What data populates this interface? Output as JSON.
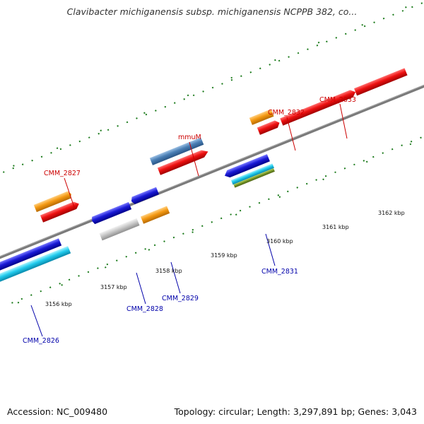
{
  "title": "Clavibacter michiganensis subsp. michiganensis NCPPB 382, co...",
  "footer": {
    "accession": "Accession: NC_009480",
    "summary": "Topology: circular; Length: 3,297,891 bp; Genes: 3,043"
  },
  "scale_labels": [
    "3156 kbp",
    "3157 kbp",
    "3158 kbp",
    "3159 kbp",
    "3160 kbp",
    "3161 kbp",
    "3162 kbp"
  ],
  "genes": [
    {
      "name": "CMM_2826",
      "strand": "reverse"
    },
    {
      "name": "CMM_2827",
      "strand": "forward"
    },
    {
      "name": "CMM_2828",
      "strand": "reverse"
    },
    {
      "name": "CMM_2829",
      "strand": "reverse"
    },
    {
      "name": "mmuM",
      "strand": "forward"
    },
    {
      "name": "CMM_2831",
      "strand": "reverse"
    },
    {
      "name": "CMM_2832",
      "strand": "forward"
    },
    {
      "name": "CMM_2833",
      "strand": "forward"
    }
  ],
  "colors": {
    "backbone": "#808080",
    "red": "#ee1111",
    "orange": "#f59a14",
    "blue": "#1a1ad6",
    "cyan": "#22ccee",
    "steelblue": "#4a7fb5",
    "olive": "#7a9a2a",
    "gray": "#c8c8c8",
    "tick": "#1a7a1a"
  }
}
